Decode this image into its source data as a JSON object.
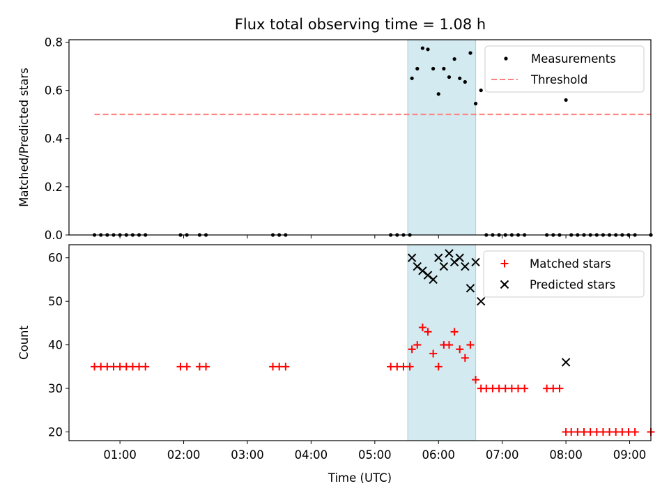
{
  "title": "Flux total observing time = 1.08 h",
  "chart_data": [
    {
      "type": "scatter",
      "ylabel": "Matched/Predicted stars",
      "xlim": [
        "00:12",
        "09:20"
      ],
      "ylim": [
        0,
        0.81
      ],
      "yticks": [
        "0.0",
        "0.2",
        "0.4",
        "0.6",
        "0.8"
      ],
      "grid": false,
      "legend_position": "top-right",
      "highlight_span": [
        "05:31",
        "06:35"
      ],
      "highlight_color": "#d3eaf0",
      "series": [
        {
          "name": "Measurements",
          "color": "#000000",
          "marker": "dot",
          "points": [
            [
              "00:36",
              0
            ],
            [
              "00:42",
              0
            ],
            [
              "00:48",
              0
            ],
            [
              "00:54",
              0
            ],
            [
              "01:00",
              0
            ],
            [
              "01:06",
              0
            ],
            [
              "01:12",
              0
            ],
            [
              "01:18",
              0
            ],
            [
              "01:24",
              0
            ],
            [
              "01:57",
              0
            ],
            [
              "02:03",
              0
            ],
            [
              "02:15",
              0
            ],
            [
              "02:21",
              0
            ],
            [
              "03:24",
              0
            ],
            [
              "03:30",
              0
            ],
            [
              "03:36",
              0
            ],
            [
              "05:15",
              0
            ],
            [
              "05:21",
              0
            ],
            [
              "05:27",
              0
            ],
            [
              "05:33",
              0
            ],
            [
              "05:35",
              0.65
            ],
            [
              "05:40",
              0.69
            ],
            [
              "05:45",
              0.775
            ],
            [
              "05:50",
              0.77
            ],
            [
              "05:55",
              0.69
            ],
            [
              "06:00",
              0.585
            ],
            [
              "06:05",
              0.69
            ],
            [
              "06:10",
              0.655
            ],
            [
              "06:15",
              0.73
            ],
            [
              "06:20",
              0.65
            ],
            [
              "06:25",
              0.635
            ],
            [
              "06:30",
              0.755
            ],
            [
              "06:35",
              0.545
            ],
            [
              "06:40",
              0.6
            ],
            [
              "06:45",
              0
            ],
            [
              "06:51",
              0
            ],
            [
              "06:57",
              0
            ],
            [
              "07:03",
              0
            ],
            [
              "07:09",
              0
            ],
            [
              "07:15",
              0
            ],
            [
              "07:21",
              0
            ],
            [
              "07:42",
              0
            ],
            [
              "07:48",
              0
            ],
            [
              "07:54",
              0
            ],
            [
              "08:00",
              0.56
            ],
            [
              "08:05",
              0
            ],
            [
              "08:11",
              0
            ],
            [
              "08:17",
              0
            ],
            [
              "08:23",
              0
            ],
            [
              "08:29",
              0
            ],
            [
              "08:35",
              0
            ],
            [
              "08:41",
              0
            ],
            [
              "08:47",
              0
            ],
            [
              "08:53",
              0
            ],
            [
              "08:59",
              0
            ],
            [
              "09:05",
              0
            ],
            [
              "09:20",
              0
            ]
          ]
        },
        {
          "name": "Threshold",
          "color": "#ff7f7f",
          "style": "dashed",
          "points": [
            [
              "00:36",
              0.5
            ],
            [
              "09:20",
              0.5
            ]
          ]
        }
      ]
    },
    {
      "type": "scatter",
      "xlabel": "Time (UTC)",
      "ylabel": "Count",
      "xlim": [
        "00:12",
        "09:20"
      ],
      "ylim": [
        18,
        63
      ],
      "yticks": [
        "20",
        "30",
        "40",
        "50",
        "60"
      ],
      "xticks": [
        "01:00",
        "02:00",
        "03:00",
        "04:00",
        "05:00",
        "06:00",
        "07:00",
        "08:00",
        "09:00"
      ],
      "grid": false,
      "legend_position": "top-right",
      "highlight_span": [
        "05:31",
        "06:35"
      ],
      "highlight_color": "#d3eaf0",
      "series": [
        {
          "name": "Matched stars",
          "color": "#ff0000",
          "marker": "plus",
          "points": [
            [
              "00:36",
              35
            ],
            [
              "00:42",
              35
            ],
            [
              "00:48",
              35
            ],
            [
              "00:54",
              35
            ],
            [
              "01:00",
              35
            ],
            [
              "01:06",
              35
            ],
            [
              "01:12",
              35
            ],
            [
              "01:18",
              35
            ],
            [
              "01:24",
              35
            ],
            [
              "01:57",
              35
            ],
            [
              "02:03",
              35
            ],
            [
              "02:15",
              35
            ],
            [
              "02:21",
              35
            ],
            [
              "03:24",
              35
            ],
            [
              "03:30",
              35
            ],
            [
              "03:36",
              35
            ],
            [
              "05:15",
              35
            ],
            [
              "05:21",
              35
            ],
            [
              "05:27",
              35
            ],
            [
              "05:33",
              35
            ],
            [
              "05:35",
              39
            ],
            [
              "05:40",
              40
            ],
            [
              "05:45",
              44
            ],
            [
              "05:50",
              43
            ],
            [
              "05:55",
              38
            ],
            [
              "06:00",
              35
            ],
            [
              "06:05",
              40
            ],
            [
              "06:10",
              40
            ],
            [
              "06:15",
              43
            ],
            [
              "06:20",
              39
            ],
            [
              "06:25",
              37
            ],
            [
              "06:30",
              40
            ],
            [
              "06:35",
              32
            ],
            [
              "06:40",
              30
            ],
            [
              "06:45",
              30
            ],
            [
              "06:51",
              30
            ],
            [
              "06:57",
              30
            ],
            [
              "07:03",
              30
            ],
            [
              "07:09",
              30
            ],
            [
              "07:15",
              30
            ],
            [
              "07:21",
              30
            ],
            [
              "07:42",
              30
            ],
            [
              "07:48",
              30
            ],
            [
              "07:54",
              30
            ],
            [
              "08:00",
              20
            ],
            [
              "08:05",
              20
            ],
            [
              "08:11",
              20
            ],
            [
              "08:17",
              20
            ],
            [
              "08:23",
              20
            ],
            [
              "08:29",
              20
            ],
            [
              "08:35",
              20
            ],
            [
              "08:41",
              20
            ],
            [
              "08:47",
              20
            ],
            [
              "08:53",
              20
            ],
            [
              "08:59",
              20
            ],
            [
              "09:05",
              20
            ],
            [
              "09:20",
              20
            ]
          ]
        },
        {
          "name": "Predicted stars",
          "color": "#000000",
          "marker": "x",
          "points": [
            [
              "05:35",
              60
            ],
            [
              "05:40",
              58
            ],
            [
              "05:45",
              57
            ],
            [
              "05:50",
              56
            ],
            [
              "05:55",
              55
            ],
            [
              "06:00",
              60
            ],
            [
              "06:05",
              58
            ],
            [
              "06:10",
              61
            ],
            [
              "06:15",
              59
            ],
            [
              "06:20",
              60
            ],
            [
              "06:25",
              58
            ],
            [
              "06:30",
              53
            ],
            [
              "06:35",
              59
            ],
            [
              "06:40",
              50
            ],
            [
              "08:00",
              36
            ]
          ]
        }
      ]
    }
  ]
}
